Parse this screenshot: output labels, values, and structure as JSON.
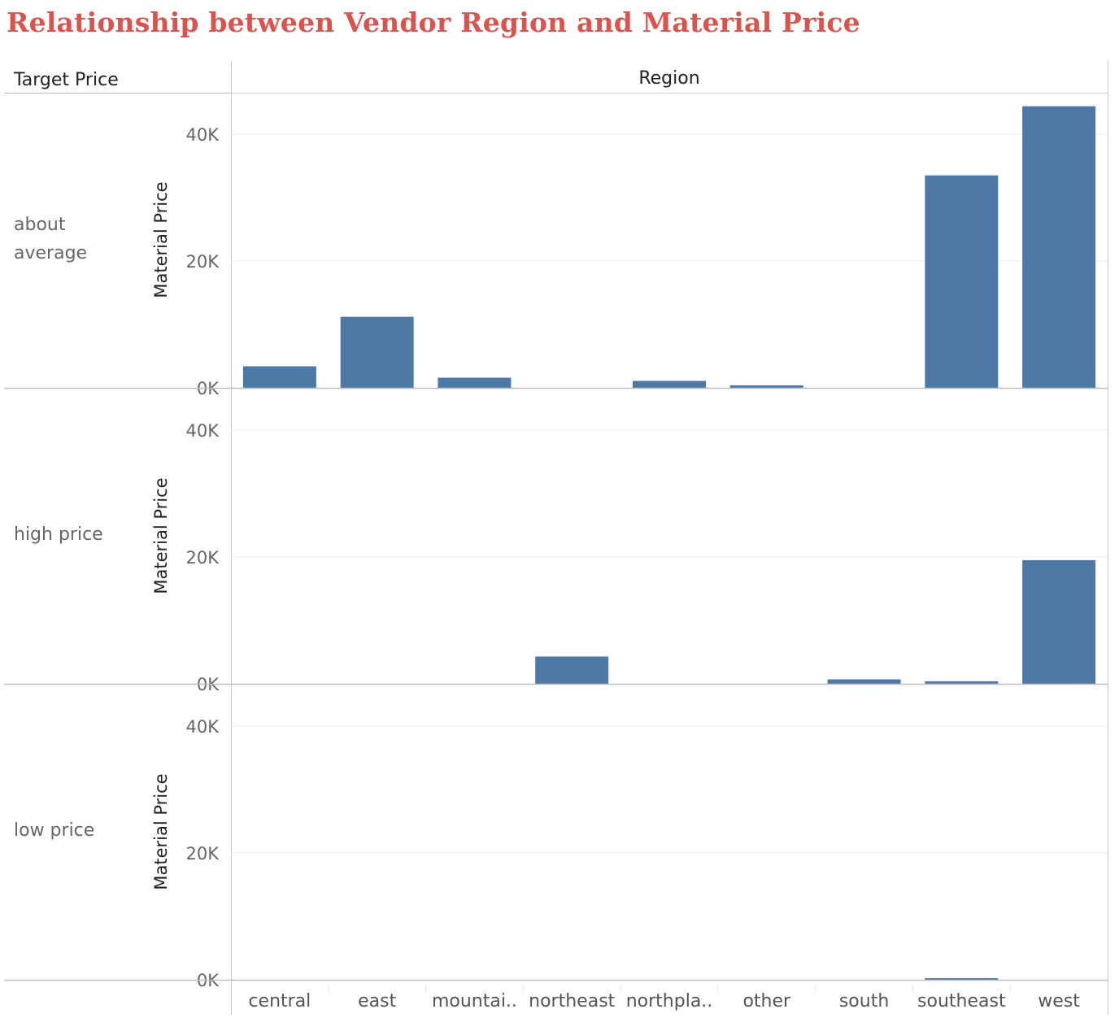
{
  "title": "Relationship between Vendor Region and Material Price",
  "row_header": "Target Price",
  "column_header": "Region",
  "y_axis_label": "Material Price",
  "chart_data": {
    "type": "bar",
    "title": "Relationship between Vendor Region and Material Price",
    "xlabel": "Region",
    "ylabel": "Material Price",
    "row_dimension": "Target Price",
    "categories": [
      "central",
      "east",
      "mountai..",
      "northeast",
      "northpla..",
      "other",
      "south",
      "southeast",
      "west"
    ],
    "ylim": [
      0,
      44000
    ],
    "y_ticks": [
      0,
      20000,
      40000
    ],
    "y_tick_labels": [
      "0K",
      "20K",
      "40K"
    ],
    "bar_color": "#4e79a7",
    "gridlines": true,
    "series": [
      {
        "name": "about average",
        "label_lines": [
          "about",
          "average"
        ],
        "values": [
          3400,
          11200,
          1600,
          0,
          1100,
          400,
          0,
          33500,
          44400
        ]
      },
      {
        "name": "high price",
        "label_lines": [
          "high price"
        ],
        "values": [
          0,
          0,
          0,
          4300,
          0,
          0,
          700,
          400,
          19500
        ]
      },
      {
        "name": "low price",
        "label_lines": [
          "low price"
        ],
        "values": [
          0,
          0,
          0,
          0,
          0,
          0,
          0,
          150,
          0
        ]
      }
    ]
  }
}
